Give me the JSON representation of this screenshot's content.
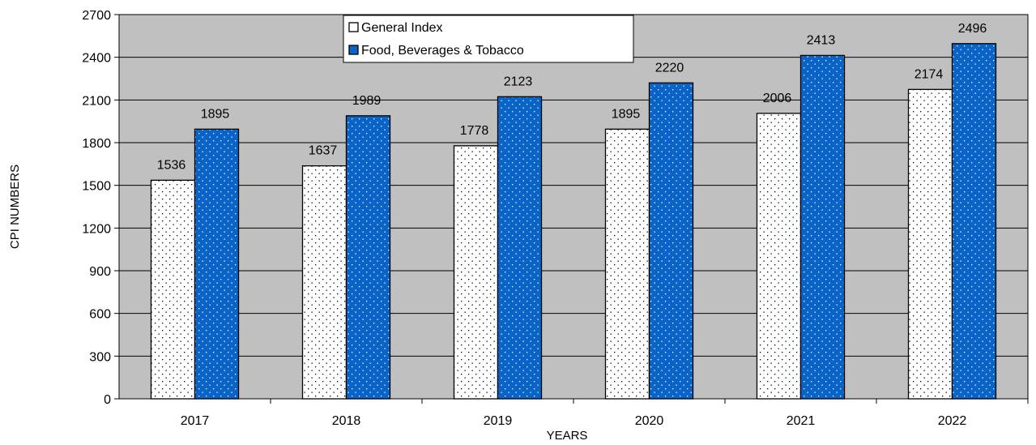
{
  "chart_data": {
    "type": "bar",
    "title": "",
    "xlabel": "YEARS",
    "ylabel": "CPI NUMBERS",
    "categories": [
      "2017",
      "2018",
      "2019",
      "2020",
      "2021",
      "2022"
    ],
    "series": [
      {
        "name": "General Index",
        "values": [
          1536,
          1637,
          1778,
          1895,
          2006,
          2174
        ],
        "color": "#ffffff",
        "dot_color": "#000000"
      },
      {
        "name": "Food, Beverages & Tobacco",
        "values": [
          1895,
          1989,
          2123,
          2220,
          2413,
          2496
        ],
        "color": "#0a64c8",
        "dot_color": "#ffffff"
      }
    ],
    "ylim": [
      0,
      2700
    ],
    "yticks": [
      0,
      300,
      600,
      900,
      1200,
      1500,
      1800,
      2100,
      2400,
      2700
    ],
    "grid": true,
    "plot_background": "#c0c0c0",
    "legend_position": "top-center"
  }
}
